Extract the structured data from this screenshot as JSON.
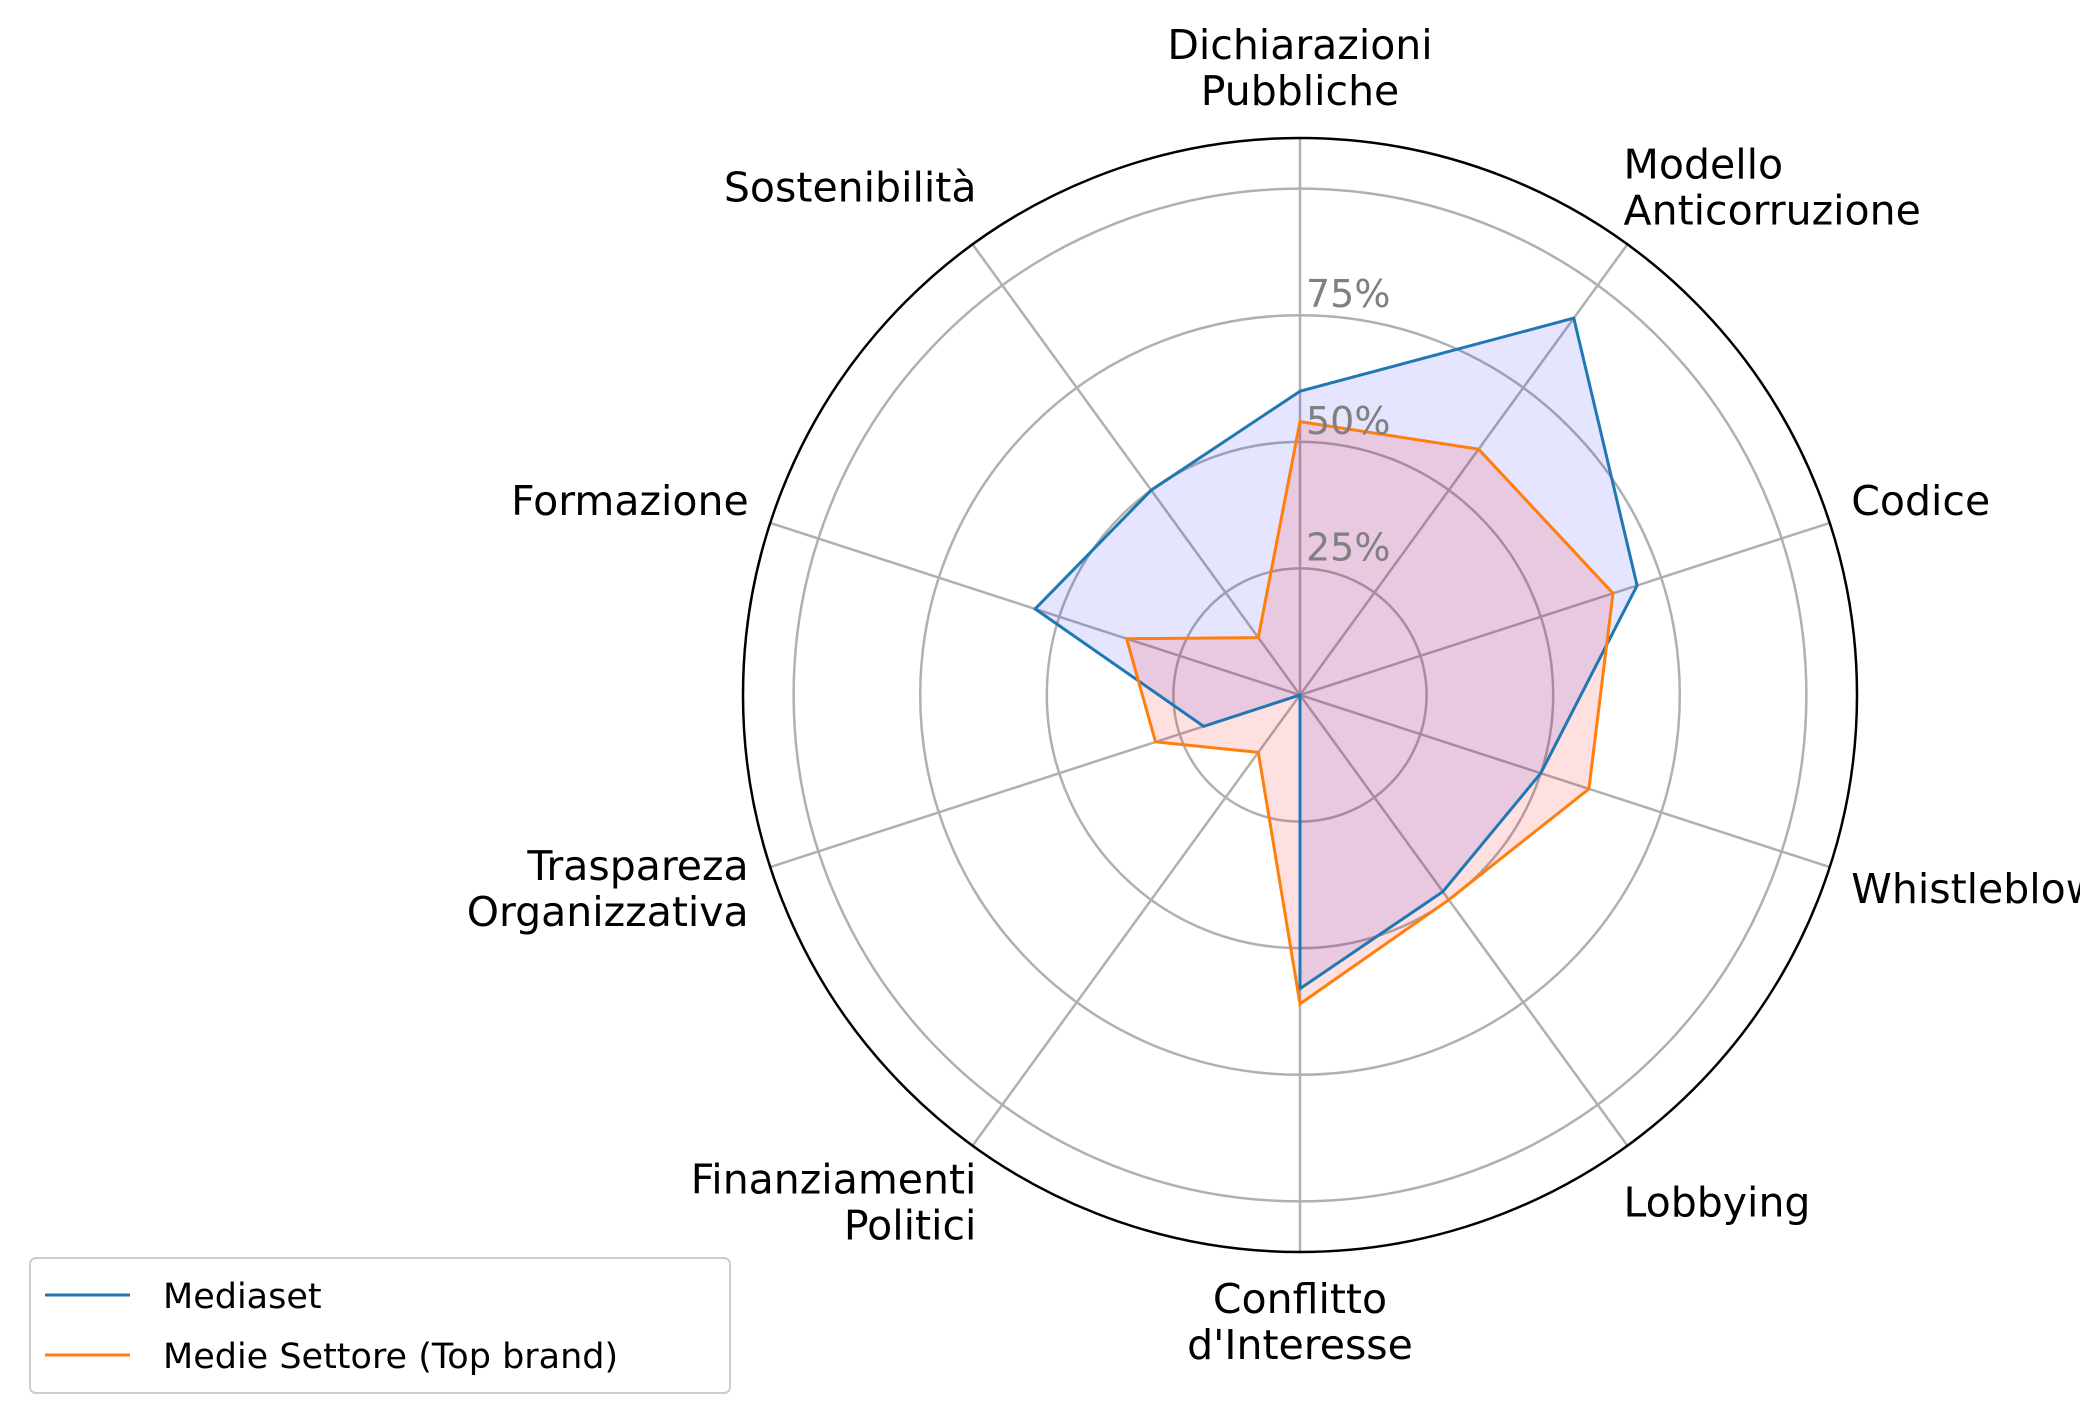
{
  "chart_data": {
    "type": "radar",
    "categories": [
      "Dichiarazioni\nPubbliche",
      "Modello\nAnticorruzione",
      "Codice",
      "Whistleblowing",
      "Lobbying",
      "Conflitto\nd'Interesse",
      "Finanziamenti\nPolitici",
      "Traspareza\nOrganizzativa",
      "Formazione",
      "Sostenibilità"
    ],
    "series": [
      {
        "name": "Mediaset",
        "values": [
          60,
          92,
          70,
          50,
          48,
          58,
          0,
          20,
          55,
          50
        ],
        "line_color": "#1f77b4",
        "fill_color": "#0000ff",
        "fill_opacity": 0.1
      },
      {
        "name": "Medie Settore (Top brand)",
        "values": [
          54,
          60,
          65,
          60,
          50,
          61,
          14,
          30,
          36,
          14
        ],
        "line_color": "#ff7f0e",
        "fill_color": "#ff0000",
        "fill_opacity": 0.12
      }
    ],
    "radial_ticks": [
      25,
      50,
      75
    ],
    "radial_tick_labels": [
      "25%",
      "50%",
      "75%"
    ],
    "rlim": [
      0,
      110
    ],
    "grid": true,
    "legend_position": "bottom-left"
  }
}
